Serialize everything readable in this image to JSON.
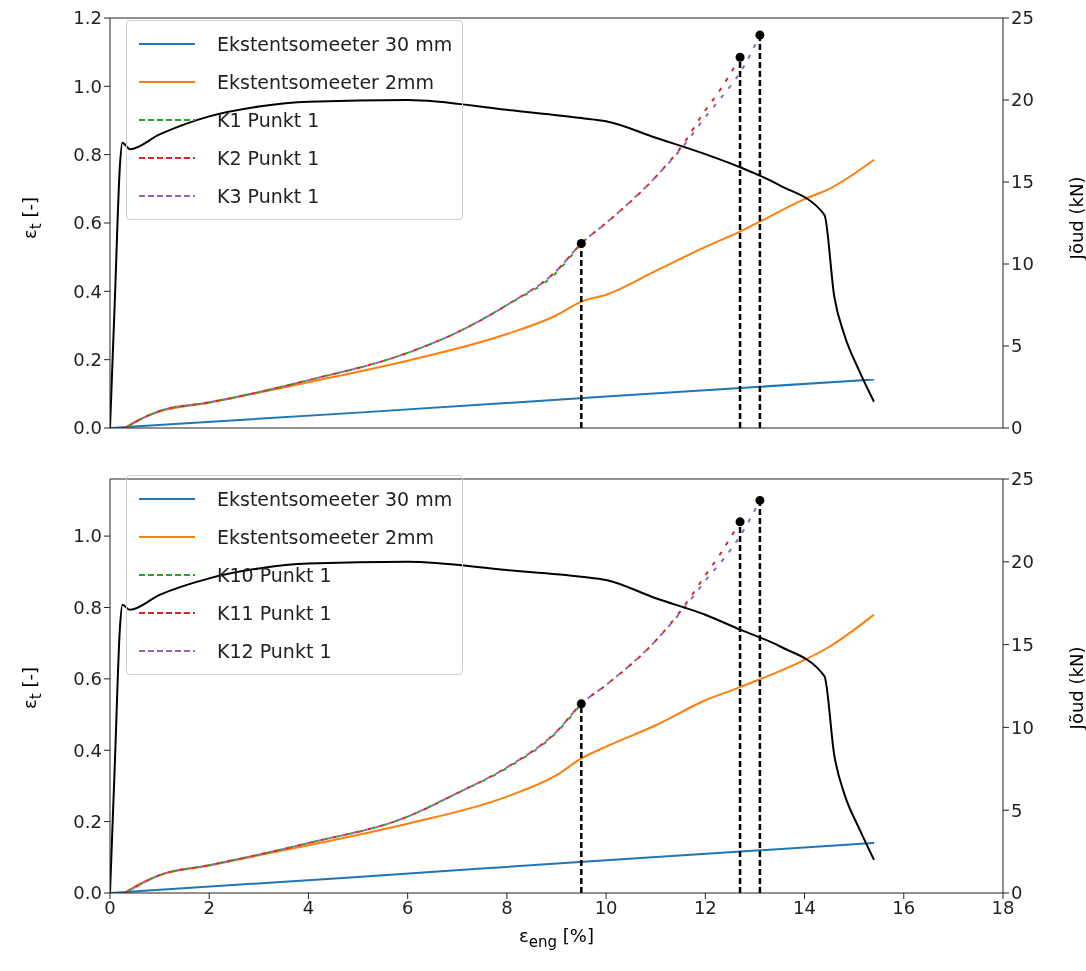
{
  "chart_data": [
    {
      "type": "line",
      "ylabel": "ε$_{t}$ [-]",
      "y2label": "Jõud (kN)",
      "legend": "top left",
      "tick_labels": "y",
      "xlim": [
        0,
        18
      ],
      "xticks": [
        0,
        2,
        4,
        6,
        8,
        10,
        12,
        14,
        16,
        18
      ],
      "ylim": [
        0,
        1.2
      ],
      "yticks": [
        {
          "value": 0,
          "label": "0.0"
        },
        {
          "value": 0.2,
          "label": "0.2"
        },
        {
          "value": 0.4,
          "label": "0.4"
        },
        {
          "value": 0.6,
          "label": "0.6"
        },
        {
          "value": 0.8,
          "label": "0.8"
        },
        {
          "value": 1.0,
          "label": "1.0"
        },
        {
          "value": 1.2,
          "label": "1.2"
        }
      ],
      "y2lim": [
        0,
        25
      ],
      "y2ticks": [
        0,
        5,
        10,
        15,
        20,
        25
      ],
      "series": [
        {
          "name": "Ekstentsomeeter 30 mm",
          "color": "#1f77b4",
          "line_style": "solid",
          "x": [
            0,
            5,
            10,
            15.4
          ],
          "values": [
            0,
            0.045,
            0.092,
            0.142
          ]
        },
        {
          "name": "Ekstentsomeeter 2mm",
          "color": "#ff7f0e",
          "line_style": "solid",
          "x": [
            0.3,
            0.5,
            1,
            2,
            4,
            6,
            8,
            9,
            9.5,
            10,
            11,
            12,
            12.7,
            14,
            14.5,
            15.4
          ],
          "values": [
            0,
            0.018,
            0.048,
            0.074,
            0.134,
            0.197,
            0.275,
            0.33,
            0.37,
            0.39,
            0.46,
            0.53,
            0.575,
            0.67,
            0.7,
            0.785
          ]
        },
        {
          "name": "K1 Punkt 1",
          "color": "#2ca02c",
          "line_style": "dashed",
          "x": [
            0.3,
            1,
            2,
            4,
            6,
            7,
            8,
            9,
            9.5
          ],
          "values": [
            0,
            0.05,
            0.075,
            0.14,
            0.22,
            0.28,
            0.36,
            0.455,
            0.54
          ]
        },
        {
          "name": "K2 Punkt 1",
          "color": "#d62728",
          "line_style": "dashed",
          "x": [
            0.3,
            1,
            2,
            4,
            6,
            7,
            8,
            9,
            9.5,
            10,
            11,
            11.5,
            12,
            12.3,
            12.7
          ],
          "values": [
            0,
            0.05,
            0.075,
            0.14,
            0.22,
            0.28,
            0.36,
            0.46,
            0.54,
            0.6,
            0.735,
            0.82,
            0.93,
            0.99,
            1.085
          ]
        },
        {
          "name": "K3 Punkt 1",
          "color": "#9467bd",
          "line_style": "dashed",
          "x": [
            0.3,
            1,
            2,
            4,
            6,
            7,
            8,
            9,
            9.5,
            10,
            11,
            11.5,
            12,
            12.5,
            12.7,
            13.1
          ],
          "values": [
            0,
            0.05,
            0.075,
            0.14,
            0.22,
            0.28,
            0.36,
            0.46,
            0.54,
            0.6,
            0.735,
            0.815,
            0.91,
            1.0,
            1.04,
            1.15
          ]
        },
        {
          "color": "#000000",
          "line_style": "solid",
          "axis": "y2",
          "x": [
            0,
            0.1,
            0.2,
            0.25,
            0.4,
            1,
            2,
            3,
            4,
            6,
            8,
            9.5,
            10,
            11,
            12,
            12.7,
            13.5,
            14.4,
            14.6,
            14.8,
            15.1,
            15.4
          ],
          "values": [
            0,
            8,
            16,
            17.4,
            17.0,
            17.9,
            19.0,
            19.6,
            19.9,
            20.0,
            19.4,
            18.9,
            18.7,
            17.7,
            16.7,
            15.9,
            14.8,
            13.0,
            8.0,
            5.7,
            3.5,
            1.6
          ]
        },
        {
          "color": "#000000",
          "line_style": "dashed",
          "x": [
            9.5,
            9.5
          ],
          "values": [
            0,
            0.54
          ]
        },
        {
          "color": "#000000",
          "line_style": "dashed",
          "x": [
            12.7,
            12.7
          ],
          "values": [
            0,
            1.085
          ]
        },
        {
          "color": "#000000",
          "line_style": "dashed",
          "x": [
            13.1,
            13.1
          ],
          "values": [
            0,
            1.15
          ]
        },
        {
          "type": "scatter",
          "color": "#000000",
          "marker": "circle",
          "x": [
            9.5,
            12.7,
            13.1
          ],
          "values": [
            0.54,
            1.085,
            1.15
          ]
        }
      ]
    },
    {
      "type": "line",
      "xlabel": "ε$_{eng}$ [%]",
      "ylabel": "ε$_{t}$ [-]",
      "y2label": "Jõud (kN)",
      "legend": "top left",
      "xlim": [
        0,
        18
      ],
      "xticks": [
        0,
        2,
        4,
        6,
        8,
        10,
        12,
        14,
        16,
        18
      ],
      "ylim": [
        0,
        1.16
      ],
      "yticks": [
        {
          "value": 0,
          "label": "0.0"
        },
        {
          "value": 0.2,
          "label": "0.2"
        },
        {
          "value": 0.4,
          "label": "0.4"
        },
        {
          "value": 0.6,
          "label": "0.6"
        },
        {
          "value": 0.8,
          "label": "0.8"
        },
        {
          "value": 1.0,
          "label": "1.0"
        }
      ],
      "y2lim": [
        0,
        25
      ],
      "y2ticks": [
        0,
        5,
        10,
        15,
        20,
        25
      ],
      "series": [
        {
          "name": "Ekstentsomeeter 30 mm",
          "color": "#1f77b4",
          "line_style": "solid",
          "x": [
            0,
            5,
            10,
            15.4
          ],
          "values": [
            0,
            0.045,
            0.092,
            0.14
          ]
        },
        {
          "name": "Ekstentsomeeter 2mm",
          "color": "#ff7f0e",
          "line_style": "solid",
          "x": [
            0.3,
            0.5,
            1,
            2,
            4,
            6,
            8,
            9,
            9.5,
            10,
            11,
            12,
            12.7,
            14,
            14.5,
            15.4
          ],
          "values": [
            0,
            0.018,
            0.05,
            0.077,
            0.134,
            0.194,
            0.27,
            0.33,
            0.377,
            0.41,
            0.47,
            0.54,
            0.577,
            0.653,
            0.69,
            0.78
          ]
        },
        {
          "name": "K10 Punkt 1",
          "color": "#2ca02c",
          "line_style": "dashed",
          "x": [
            0.3,
            1,
            2,
            4,
            6,
            7,
            8,
            9,
            9.5
          ],
          "values": [
            0,
            0.05,
            0.078,
            0.14,
            0.214,
            0.28,
            0.35,
            0.45,
            0.53
          ]
        },
        {
          "name": "K11 Punkt 1",
          "color": "#d62728",
          "line_style": "dashed",
          "x": [
            0.3,
            1,
            2,
            4,
            6,
            7,
            8,
            9,
            9.5,
            10,
            11,
            11.5,
            12,
            12.3,
            12.7
          ],
          "values": [
            0,
            0.05,
            0.078,
            0.14,
            0.214,
            0.28,
            0.352,
            0.452,
            0.53,
            0.583,
            0.707,
            0.79,
            0.89,
            0.95,
            1.04
          ]
        },
        {
          "name": "K12 Punkt 1",
          "color": "#9467bd",
          "line_style": "dashed",
          "x": [
            0.3,
            1,
            2,
            4,
            6,
            7,
            8,
            9,
            9.5,
            10,
            11,
            11.5,
            12,
            12.5,
            12.7,
            13.1
          ],
          "values": [
            0,
            0.05,
            0.078,
            0.14,
            0.214,
            0.28,
            0.352,
            0.452,
            0.53,
            0.583,
            0.707,
            0.786,
            0.875,
            0.96,
            1.0,
            1.1
          ]
        },
        {
          "color": "#000000",
          "line_style": "solid",
          "axis": "y2",
          "x": [
            0,
            0.1,
            0.2,
            0.25,
            0.4,
            1,
            2,
            3,
            4,
            6,
            8,
            9.5,
            10,
            11,
            12,
            12.7,
            13.5,
            14.4,
            14.6,
            14.8,
            15.1,
            15.4
          ],
          "values": [
            0,
            8,
            16,
            17.4,
            17.1,
            18.0,
            19.0,
            19.6,
            19.9,
            20.0,
            19.5,
            19.1,
            18.9,
            17.8,
            16.8,
            15.9,
            14.9,
            13.1,
            8.3,
            6.0,
            3.9,
            2.0
          ]
        },
        {
          "color": "#000000",
          "line_style": "dashed",
          "x": [
            9.5,
            9.5
          ],
          "values": [
            0,
            0.53
          ]
        },
        {
          "color": "#000000",
          "line_style": "dashed",
          "x": [
            12.7,
            12.7
          ],
          "values": [
            0,
            1.04
          ]
        },
        {
          "color": "#000000",
          "line_style": "dashed",
          "x": [
            13.1,
            13.1
          ],
          "values": [
            0,
            1.1
          ]
        },
        {
          "type": "scatter",
          "color": "#000000",
          "marker": "circle",
          "x": [
            9.5,
            12.7,
            13.1
          ],
          "values": [
            0.53,
            1.04,
            1.1
          ]
        }
      ]
    }
  ]
}
